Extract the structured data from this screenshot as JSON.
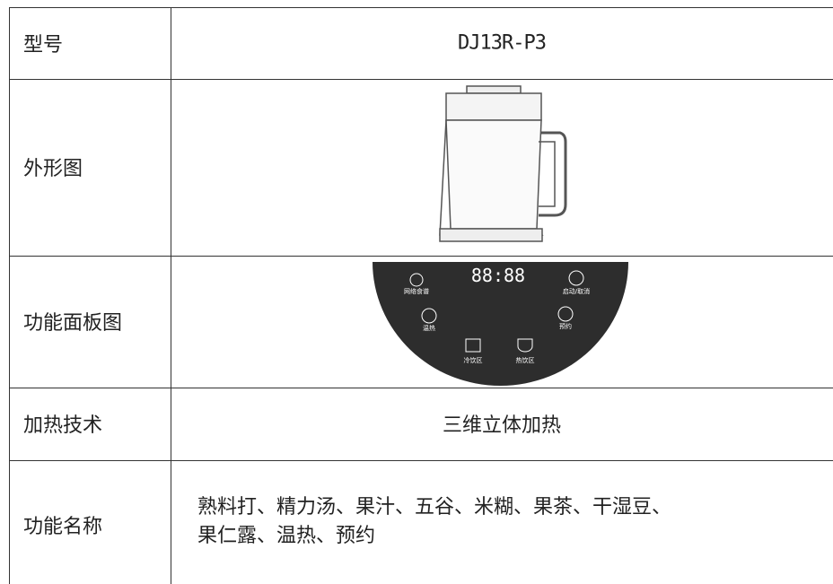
{
  "table": {
    "rows": [
      {
        "label": "型号",
        "value": "DJ13R-P3"
      },
      {
        "label": "外形图"
      },
      {
        "label": "功能面板图"
      },
      {
        "label": "加热技术",
        "value": "三维立体加热"
      },
      {
        "label": "功能名称",
        "lines": [
          "熟料打、精力汤、果汁、五谷、米糊、果茶、干湿豆、",
          "果仁露、温热、预约"
        ]
      }
    ]
  },
  "panel": {
    "display": "88:88",
    "labels": [
      "网络食谱",
      "启动/取消",
      "温热",
      "预约",
      "冷饮区",
      "热饮区"
    ]
  }
}
